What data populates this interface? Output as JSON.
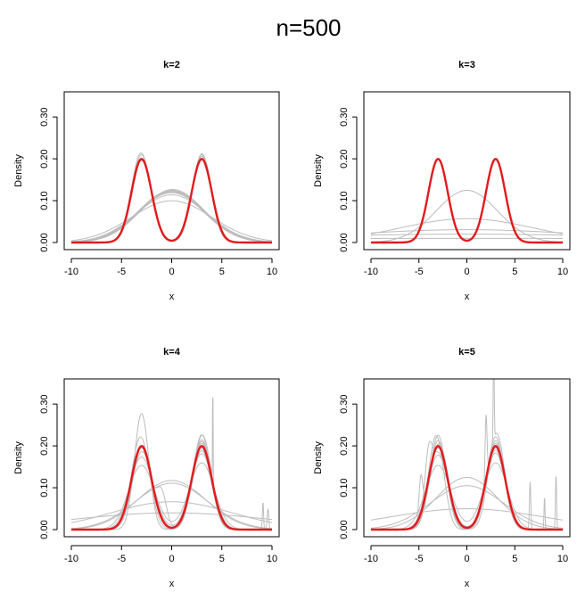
{
  "figure": {
    "title": "n=500"
  },
  "chart_data": [
    {
      "type": "line",
      "title": "k=2",
      "xlabel": "x",
      "ylabel": "Density",
      "xlim": [
        -10,
        10
      ],
      "ylim": [
        0,
        0.36
      ],
      "xticks": [
        "-10",
        "-5",
        "0",
        "5",
        "10"
      ],
      "yticks": [
        "0.00",
        "0.10",
        "0.20",
        "0.30"
      ],
      "true_density": {
        "color": "#e31a1c",
        "components": [
          {
            "w": 0.5,
            "mu": -3,
            "sd": 1
          },
          {
            "w": 0.5,
            "mu": 3,
            "sd": 1
          }
        ]
      },
      "estimates_color": "#bdbdbd",
      "series": [
        {
          "components": [
            {
              "w": 0.5,
              "mu": -3,
              "sd": 0.95
            },
            {
              "w": 0.5,
              "mu": 3,
              "sd": 0.95
            }
          ]
        },
        {
          "components": [
            {
              "w": 0.52,
              "mu": -3.05,
              "sd": 0.97
            },
            {
              "w": 0.48,
              "mu": 3.0,
              "sd": 0.93
            }
          ]
        },
        {
          "components": [
            {
              "w": 0.49,
              "mu": -2.95,
              "sd": 0.98
            },
            {
              "w": 0.51,
              "mu": 3.02,
              "sd": 0.96
            }
          ]
        },
        {
          "components": [
            {
              "w": 0.5,
              "mu": -3.0,
              "sd": 1.02
            },
            {
              "w": 0.5,
              "mu": 2.97,
              "sd": 0.99
            }
          ]
        },
        {
          "components": [
            {
              "w": 1,
              "mu": 0,
              "sd": 3.25
            }
          ]
        },
        {
          "components": [
            {
              "w": 1,
              "mu": 0.05,
              "sd": 3.2
            }
          ]
        },
        {
          "components": [
            {
              "w": 1,
              "mu": -0.05,
              "sd": 3.3
            }
          ]
        },
        {
          "components": [
            {
              "w": 1,
              "mu": 0.1,
              "sd": 3.15
            }
          ]
        },
        {
          "components": [
            {
              "w": 1,
              "mu": 0,
              "sd": 3.35
            }
          ]
        },
        {
          "components": [
            {
              "w": 1,
              "mu": -0.1,
              "sd": 3.22
            }
          ]
        },
        {
          "components": [
            {
              "w": 1,
              "mu": 0,
              "sd": 3.5
            }
          ]
        },
        {
          "components": [
            {
              "w": 1,
              "mu": 0,
              "sd": 4.0
            }
          ]
        }
      ]
    },
    {
      "type": "line",
      "title": "k=3",
      "xlabel": "x",
      "ylabel": "Density",
      "xlim": [
        -10,
        10
      ],
      "ylim": [
        0,
        0.36
      ],
      "xticks": [
        "-10",
        "-5",
        "0",
        "5",
        "10"
      ],
      "yticks": [
        "0.00",
        "0.10",
        "0.20",
        "0.30"
      ],
      "true_density": {
        "color": "#e31a1c",
        "components": [
          {
            "w": 0.5,
            "mu": -3,
            "sd": 1
          },
          {
            "w": 0.5,
            "mu": 3,
            "sd": 1
          }
        ]
      },
      "estimates_color": "#bdbdbd",
      "series": [
        {
          "components": [
            {
              "w": 1,
              "mu": 0,
              "sd": 3.2
            }
          ]
        },
        {
          "components": [
            {
              "w": 1,
              "mu": 0,
              "sd": 7.0
            }
          ]
        },
        {
          "components": [
            {
              "w": 1,
              "mu": 0,
              "sd": 13
            }
          ]
        },
        {
          "components": [
            {
              "w": 1,
              "mu": 0,
              "sd": 20
            }
          ]
        },
        {
          "components": [
            {
              "w": 1,
              "mu": 0,
              "sd": 40
            }
          ]
        }
      ]
    },
    {
      "type": "line",
      "title": "k=4",
      "xlabel": "x",
      "ylabel": "Density",
      "xlim": [
        -10,
        10
      ],
      "ylim": [
        0,
        0.36
      ],
      "xticks": [
        "-10",
        "-5",
        "0",
        "5",
        "10"
      ],
      "yticks": [
        "0.00",
        "0.10",
        "0.20",
        "0.30"
      ],
      "true_density": {
        "color": "#e31a1c",
        "components": [
          {
            "w": 0.5,
            "mu": -3,
            "sd": 1
          },
          {
            "w": 0.5,
            "mu": 3,
            "sd": 1
          }
        ]
      },
      "estimates_color": "#bdbdbd",
      "series": [
        {
          "components": [
            {
              "w": 0.5,
              "mu": -3,
              "sd": 0.72
            },
            {
              "w": 0.5,
              "mu": 3,
              "sd": 0.95
            }
          ]
        },
        {
          "components": [
            {
              "w": 0.5,
              "mu": -3.1,
              "sd": 0.9
            },
            {
              "w": 0.5,
              "mu": 3.0,
              "sd": 0.88
            }
          ]
        },
        {
          "components": [
            {
              "w": 0.48,
              "mu": -2.9,
              "sd": 0.95
            },
            {
              "w": 0.52,
              "mu": 3.05,
              "sd": 0.92
            }
          ]
        },
        {
          "components": [
            {
              "w": 0.45,
              "mu": -3,
              "sd": 0.92
            },
            {
              "w": 0.45,
              "mu": 3,
              "sd": 0.95
            },
            {
              "w": 0.1,
              "mu": -1.0,
              "sd": 0.5
            }
          ]
        },
        {
          "components": [
            {
              "w": 0.49,
              "mu": -3,
              "sd": 1.0
            },
            {
              "w": 0.5,
              "mu": 3,
              "sd": 0.97
            },
            {
              "w": 0.01,
              "mu": 9.6,
              "sd": 0.08
            }
          ]
        },
        {
          "components": [
            {
              "w": 0.49,
              "mu": -2.95,
              "sd": 1.05
            },
            {
              "w": 0.49,
              "mu": 2.95,
              "sd": 1.0
            },
            {
              "w": 0.02,
              "mu": 4.1,
              "sd": 0.03
            }
          ]
        },
        {
          "components": [
            {
              "w": 0.5,
              "mu": -3,
              "sd": 1.15
            },
            {
              "w": 0.5,
              "mu": 3,
              "sd": 1.1
            }
          ]
        },
        {
          "components": [
            {
              "w": 0.5,
              "mu": -3,
              "sd": 1.3
            },
            {
              "w": 0.5,
              "mu": 3,
              "sd": 1.25
            }
          ]
        },
        {
          "components": [
            {
              "w": 0.49,
              "mu": -3,
              "sd": 1.0
            },
            {
              "w": 0.5,
              "mu": 3,
              "sd": 0.93
            },
            {
              "w": 0.01,
              "mu": 9.1,
              "sd": 0.06
            }
          ]
        },
        {
          "components": [
            {
              "w": 1,
              "mu": 0,
              "sd": 3.4
            }
          ]
        },
        {
          "components": [
            {
              "w": 1,
              "mu": 0,
              "sd": 3.6
            }
          ]
        },
        {
          "components": [
            {
              "w": 1,
              "mu": 0,
              "sd": 6.0
            }
          ]
        },
        {
          "components": [
            {
              "w": 1,
              "mu": 0,
              "sd": 10
            }
          ]
        }
      ]
    },
    {
      "type": "line",
      "title": "k=5",
      "xlabel": "x",
      "ylabel": "Density",
      "xlim": [
        -10,
        10
      ],
      "ylim": [
        0,
        0.36
      ],
      "xticks": [
        "-10",
        "-5",
        "0",
        "5",
        "10"
      ],
      "yticks": [
        "0.00",
        "0.10",
        "0.20",
        "0.30"
      ],
      "true_density": {
        "color": "#e31a1c",
        "components": [
          {
            "w": 0.5,
            "mu": -3,
            "sd": 1
          },
          {
            "w": 0.5,
            "mu": 3,
            "sd": 1
          }
        ]
      },
      "estimates_color": "#bdbdbd",
      "series": [
        {
          "components": [
            {
              "w": 0.48,
              "mu": -3,
              "sd": 0.85
            },
            {
              "w": 0.48,
              "mu": 3,
              "sd": 0.9
            },
            {
              "w": 0.04,
              "mu": 2.0,
              "sd": 0.1
            }
          ]
        },
        {
          "components": [
            {
              "w": 0.45,
              "mu": -3.2,
              "sd": 0.8
            },
            {
              "w": 0.5,
              "mu": 3,
              "sd": 0.9
            },
            {
              "w": 0.05,
              "mu": -4.8,
              "sd": 0.2
            }
          ]
        },
        {
          "components": [
            {
              "w": 0.48,
              "mu": -3,
              "sd": 0.9
            },
            {
              "w": 0.49,
              "mu": 3.1,
              "sd": 0.85
            },
            {
              "w": 0.03,
              "mu": 2.8,
              "sd": 0.05
            }
          ]
        },
        {
          "components": [
            {
              "w": 0.49,
              "mu": -2.9,
              "sd": 0.95
            },
            {
              "w": 0.49,
              "mu": 3,
              "sd": 0.95
            },
            {
              "w": 0.02,
              "mu": 9.3,
              "sd": 0.06
            }
          ]
        },
        {
          "components": [
            {
              "w": 0.49,
              "mu": -3,
              "sd": 1.0
            },
            {
              "w": 0.49,
              "mu": 3,
              "sd": 1.0
            },
            {
              "w": 0.02,
              "mu": 6.6,
              "sd": 0.07
            }
          ]
        },
        {
          "components": [
            {
              "w": 0.49,
              "mu": -3,
              "sd": 1.1
            },
            {
              "w": 0.5,
              "mu": 3,
              "sd": 1.05
            },
            {
              "w": 0.01,
              "mu": 8.1,
              "sd": 0.05
            }
          ]
        },
        {
          "components": [
            {
              "w": 0.46,
              "mu": -3,
              "sd": 1.0
            },
            {
              "w": 0.46,
              "mu": 3,
              "sd": 1.0
            },
            {
              "w": 0.08,
              "mu": -4.0,
              "sd": 0.35
            }
          ]
        },
        {
          "components": [
            {
              "w": 0.5,
              "mu": -3,
              "sd": 1.3
            },
            {
              "w": 0.5,
              "mu": 3,
              "sd": 1.25
            }
          ]
        },
        {
          "components": [
            {
              "w": 1,
              "mu": 0,
              "sd": 3.2
            }
          ]
        },
        {
          "components": [
            {
              "w": 1,
              "mu": 0,
              "sd": 3.8
            }
          ]
        },
        {
          "components": [
            {
              "w": 1,
              "mu": 0,
              "sd": 8
            }
          ]
        }
      ]
    }
  ]
}
